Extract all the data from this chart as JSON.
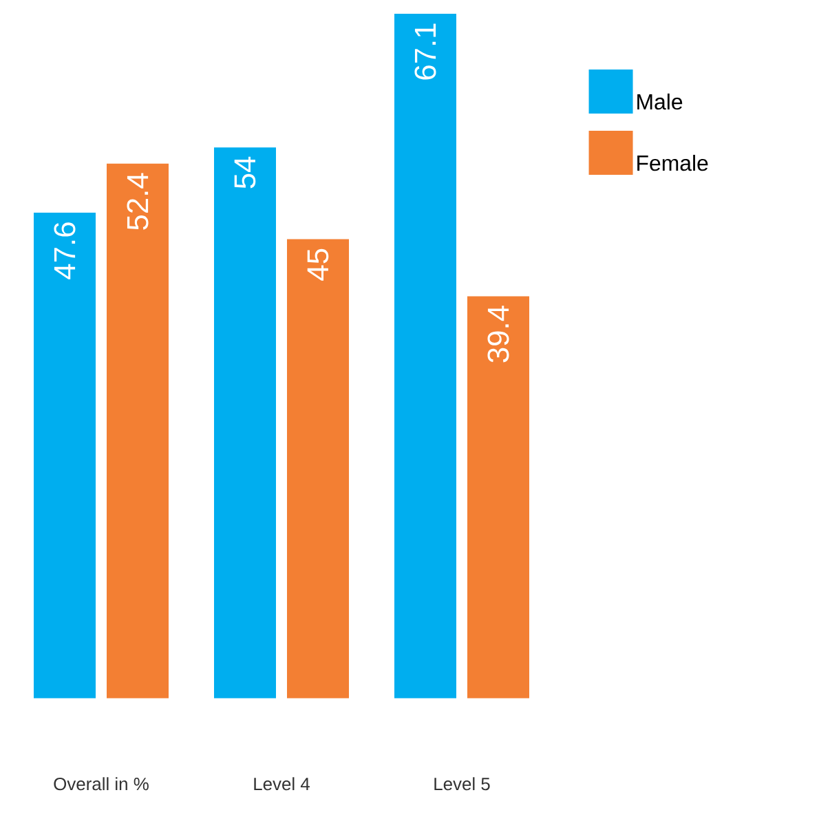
{
  "chart_data": {
    "type": "bar",
    "categories": [
      "Overall in %",
      "Level 4",
      "Level 5"
    ],
    "series": [
      {
        "name": "Male",
        "color": "#00aeef",
        "values": [
          47.6,
          54,
          67.1
        ]
      },
      {
        "name": "Female",
        "color": "#f37f33",
        "values": [
          52.4,
          45,
          39.4
        ]
      }
    ],
    "data_labels": true,
    "legend": "top right"
  }
}
